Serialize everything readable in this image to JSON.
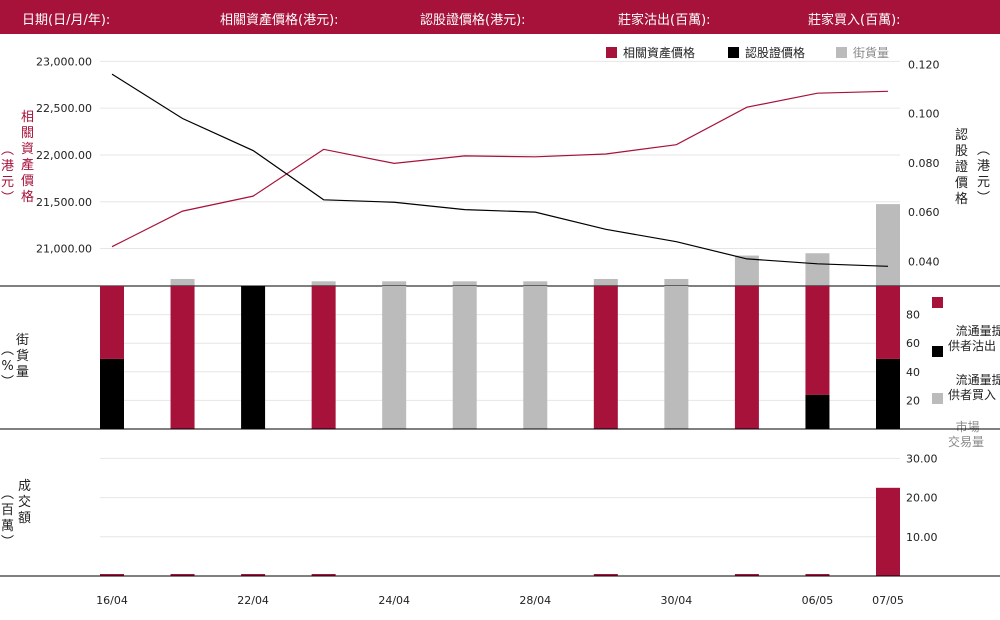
{
  "header": {
    "date_label": "日期(日/月/年):",
    "underlying_label": "相關資產價格(港元):",
    "warrant_label": "認股證價格(港元):",
    "mm_sell_label": "莊家沽出(百萬):",
    "mm_buy_label": "莊家買入(百萬):"
  },
  "colors": {
    "header_bg": "#a6123a",
    "underlying": "#a6123a",
    "warrant": "#000000",
    "volume": "#bbbbbb"
  },
  "chart_data": [
    {
      "type": "line",
      "legend": [
        "相關資產價格",
        "認股證價格",
        "街貨量"
      ],
      "legend_position": "top-right",
      "x": [
        "16/04",
        "",
        "22/04",
        "",
        "24/04",
        "",
        "28/04",
        "",
        "30/04",
        "",
        "06/05",
        "07/05"
      ],
      "series": [
        {
          "name": "相關資產價格",
          "axis": "left",
          "values": [
            21020,
            21400,
            21560,
            22060,
            21910,
            21990,
            21980,
            22010,
            22110,
            22510,
            22660,
            22680
          ]
        },
        {
          "name": "認股證價格",
          "axis": "right",
          "values": [
            0.116,
            0.098,
            0.085,
            0.065,
            0.064,
            0.061,
            0.06,
            0.053,
            0.048,
            0.041,
            0.039,
            0.038
          ]
        }
      ],
      "volume_bars": [
        0,
        3,
        0,
        2,
        2,
        2,
        2,
        3,
        3,
        13,
        14,
        35
      ],
      "y_left": {
        "label": "相關資產價格 (港元)",
        "ticks": [
          "21,000.00",
          "21,500.00",
          "22,000.00",
          "22,500.00",
          "23,000.00"
        ],
        "range": [
          20600,
          23100
        ]
      },
      "y_right": {
        "label": "認股證價格 (港元)",
        "ticks": [
          "0.040",
          "0.060",
          "0.080",
          "0.100",
          "0.120"
        ],
        "range": [
          0.03,
          0.125
        ]
      }
    },
    {
      "type": "bar",
      "stacked": true,
      "ylabel": "街貨量 %",
      "y_ticks": [
        "20",
        "40",
        "60",
        "80"
      ],
      "ylim": [
        0,
        100
      ],
      "legend": [
        "流通量提\n供者沽出",
        "流通量提\n供者買入",
        "市場\n交易量"
      ],
      "series": [
        {
          "name": "流通量提供者買入",
          "values": [
            49,
            0,
            100,
            0,
            0,
            0,
            0,
            0,
            0,
            0,
            24,
            49
          ]
        },
        {
          "name": "流通量提供者沽出",
          "values": [
            51,
            100,
            0,
            100,
            0,
            0,
            0,
            100,
            0,
            100,
            76,
            51
          ]
        },
        {
          "name": "市場交易量",
          "values": [
            0,
            0,
            0,
            0,
            100,
            100,
            100,
            0,
            100,
            0,
            0,
            0
          ]
        }
      ]
    },
    {
      "type": "bar",
      "ylabel": "成交額 (百萬)",
      "y_ticks": [
        "10.00",
        "20.00",
        "30.00"
      ],
      "ylim": [
        0,
        30
      ],
      "values": [
        0.2,
        0.2,
        0.2,
        0.2,
        0,
        0,
        0,
        0.2,
        0,
        0.2,
        0.2,
        22.5
      ]
    }
  ],
  "labels": {
    "left_axis": "相\n關\n資\n產\n價\n格",
    "left_axis_unit": "︵\n港\n元\n︶",
    "right_axis": "認\n股\n證\n價\n格",
    "right_axis_unit": "︵\n港\n元\n︶",
    "mid_axis": "街\n貨\n量",
    "mid_axis_unit": "︵\n%\n︶",
    "bottom_axis": "成\n交\n額",
    "bottom_axis_unit": "︵\n百\n萬\n︶"
  }
}
